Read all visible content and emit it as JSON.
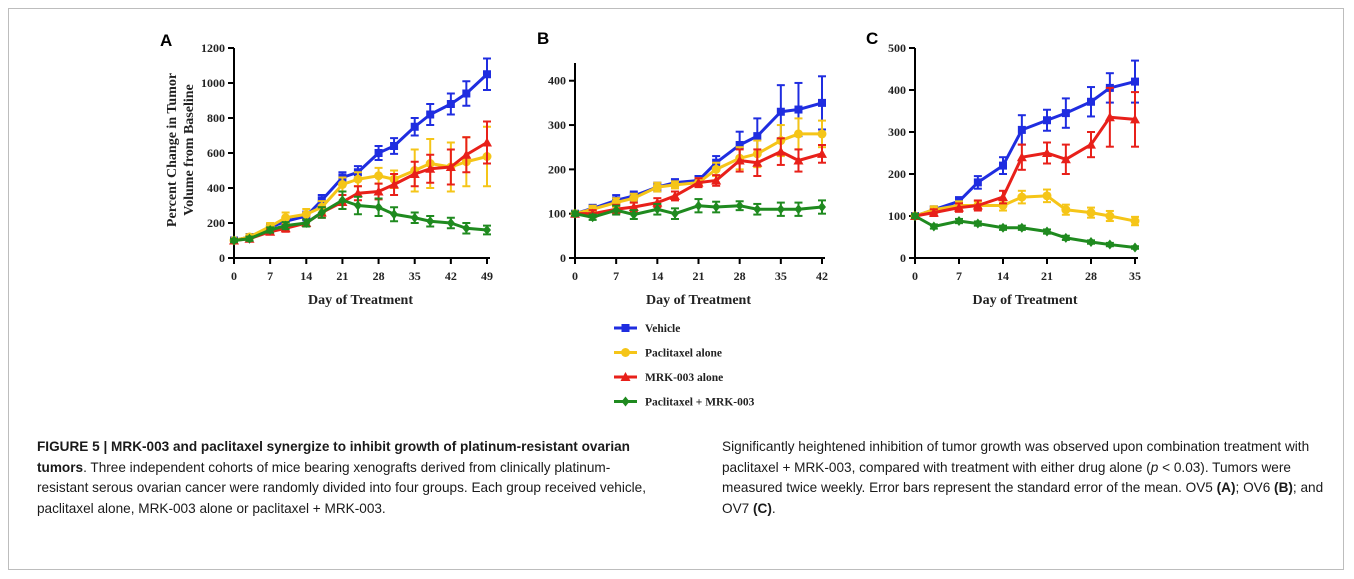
{
  "caption": {
    "figure_label": "FIGURE 5 | MRK-003 and paclitaxel synergize to inhibit growth of platinum-resistant ovarian tumors",
    "left_body": ". Three independent cohorts of mice bearing xenografts derived from clinically platinum-resistant serous ovarian cancer were randomly divided into four groups. Each group received vehicle, paclitaxel alone, MRK-003 alone or paclitaxel + MRK-003.",
    "right_p1": "Significantly heightened inhibition of tumor growth was observed upon combination treatment with paclitaxel + MRK-003, compared with treatment with either drug alone (",
    "right_p_italic": "p",
    "right_p2": " < 0.03). Tumors were measured twice weekly. Error bars represent the standard error of the mean. OV5 ",
    "ref_a": "(A)",
    "right_p3": "; OV6 ",
    "ref_b": "(B)",
    "right_p4": "; and OV7 ",
    "ref_c": "(C)",
    "right_p5": "."
  },
  "legend": [
    {
      "label": "Vehicle",
      "color": "#1f2de0",
      "marker": "square"
    },
    {
      "label": "Paclitaxel alone",
      "color": "#f5c518",
      "marker": "circle"
    },
    {
      "label": "MRK-003 alone",
      "color": "#e8201a",
      "marker": "triangle"
    },
    {
      "label": "Paclitaxel + MRK-003",
      "color": "#1f8a1f",
      "marker": "diamond"
    }
  ],
  "chart_data": [
    {
      "panel": "A",
      "type": "line",
      "xlabel": "Day  of Treatment",
      "ylabel": "Percent Change in Tumor Volume from Baseline",
      "x_ticks": [
        0,
        7,
        14,
        21,
        28,
        35,
        42,
        49
      ],
      "y_ticks": [
        0,
        200,
        400,
        600,
        800,
        1000,
        1200
      ],
      "xlim": [
        0,
        49
      ],
      "ylim": [
        0,
        1200
      ],
      "x": [
        0,
        3,
        7,
        10,
        14,
        17,
        21,
        24,
        28,
        31,
        35,
        38,
        42,
        45,
        49
      ],
      "series": [
        {
          "name": "Vehicle",
          "values": [
            100,
            120,
            175,
            210,
            240,
            330,
            460,
            490,
            600,
            640,
            750,
            820,
            880,
            940,
            1050
          ],
          "errors": [
            10,
            15,
            20,
            20,
            25,
            30,
            30,
            35,
            40,
            45,
            50,
            60,
            60,
            70,
            90
          ]
        },
        {
          "name": "Paclitaxel alone",
          "values": [
            100,
            120,
            180,
            230,
            250,
            290,
            420,
            450,
            470,
            450,
            500,
            540,
            520,
            550,
            580
          ],
          "errors": [
            10,
            15,
            20,
            30,
            30,
            35,
            40,
            40,
            45,
            50,
            120,
            140,
            140,
            140,
            170
          ]
        },
        {
          "name": "MRK-003 alone",
          "values": [
            100,
            110,
            150,
            170,
            200,
            260,
            320,
            370,
            380,
            420,
            480,
            510,
            520,
            590,
            660
          ],
          "errors": [
            10,
            12,
            15,
            20,
            20,
            30,
            40,
            40,
            45,
            60,
            70,
            80,
            100,
            100,
            120
          ]
        },
        {
          "name": "Paclitaxel + MRK-003",
          "values": [
            100,
            110,
            160,
            185,
            200,
            260,
            330,
            300,
            290,
            250,
            230,
            210,
            200,
            170,
            160
          ],
          "errors": [
            10,
            12,
            15,
            20,
            20,
            30,
            50,
            50,
            50,
            40,
            30,
            30,
            30,
            30,
            25
          ]
        }
      ]
    },
    {
      "panel": "B",
      "type": "line",
      "xlabel": "Day  of Treatment",
      "ylabel": "",
      "x_ticks": [
        0,
        7,
        14,
        21,
        28,
        35,
        42
      ],
      "y_ticks": [
        0,
        100,
        200,
        300,
        400
      ],
      "xlim": [
        0,
        42
      ],
      "ylim": [
        0,
        440
      ],
      "x": [
        0,
        3,
        7,
        10,
        14,
        17,
        21,
        24,
        28,
        31,
        35,
        38,
        42
      ],
      "series": [
        {
          "name": "Vehicle",
          "values": [
            100,
            112,
            130,
            140,
            160,
            170,
            175,
            215,
            255,
            275,
            330,
            335,
            350
          ],
          "errors": [
            5,
            8,
            12,
            10,
            10,
            8,
            10,
            15,
            30,
            40,
            60,
            60,
            60
          ]
        },
        {
          "name": "Paclitaxel alone",
          "values": [
            100,
            110,
            125,
            135,
            160,
            165,
            170,
            200,
            225,
            235,
            265,
            280,
            280
          ],
          "errors": [
            5,
            8,
            10,
            10,
            10,
            8,
            10,
            15,
            25,
            30,
            35,
            35,
            30
          ]
        },
        {
          "name": "MRK-003 alone",
          "values": [
            100,
            100,
            110,
            115,
            125,
            140,
            170,
            175,
            220,
            215,
            240,
            220,
            235
          ],
          "errors": [
            5,
            8,
            10,
            10,
            10,
            10,
            10,
            12,
            25,
            30,
            30,
            25,
            20
          ]
        },
        {
          "name": "Paclitaxel + MRK-003",
          "values": [
            100,
            92,
            108,
            98,
            110,
            100,
            118,
            115,
            118,
            110,
            110,
            110,
            115
          ],
          "errors": [
            5,
            6,
            10,
            10,
            12,
            12,
            15,
            12,
            10,
            12,
            15,
            15,
            15
          ]
        }
      ]
    },
    {
      "panel": "C",
      "type": "line",
      "xlabel": "Day  of Treatment",
      "ylabel": "",
      "x_ticks": [
        0,
        7,
        14,
        21,
        28,
        35
      ],
      "y_ticks": [
        0,
        100,
        200,
        300,
        400,
        500
      ],
      "xlim": [
        0,
        35
      ],
      "ylim": [
        0,
        500
      ],
      "x": [
        0,
        3,
        7,
        10,
        14,
        17,
        21,
        24,
        28,
        31,
        35
      ],
      "series": [
        {
          "name": "Vehicle",
          "values": [
            100,
            115,
            135,
            180,
            220,
            305,
            328,
            345,
            372,
            405,
            420
          ],
          "errors": [
            5,
            8,
            10,
            15,
            20,
            35,
            25,
            35,
            35,
            35,
            50
          ]
        },
        {
          "name": "Paclitaxel alone",
          "values": [
            100,
            115,
            125,
            125,
            125,
            145,
            148,
            115,
            108,
            100,
            88
          ],
          "errors": [
            5,
            8,
            10,
            10,
            12,
            15,
            15,
            12,
            12,
            12,
            10
          ]
        },
        {
          "name": "MRK-003 alone",
          "values": [
            100,
            108,
            120,
            125,
            145,
            240,
            250,
            235,
            270,
            335,
            330
          ],
          "errors": [
            5,
            8,
            10,
            12,
            15,
            30,
            25,
            35,
            30,
            70,
            65
          ]
        },
        {
          "name": "Paclitaxel + MRK-003",
          "values": [
            100,
            75,
            88,
            82,
            72,
            72,
            63,
            48,
            38,
            32,
            25
          ],
          "errors": [
            5,
            5,
            5,
            5,
            5,
            5,
            5,
            5,
            4,
            4,
            3
          ]
        }
      ]
    }
  ]
}
